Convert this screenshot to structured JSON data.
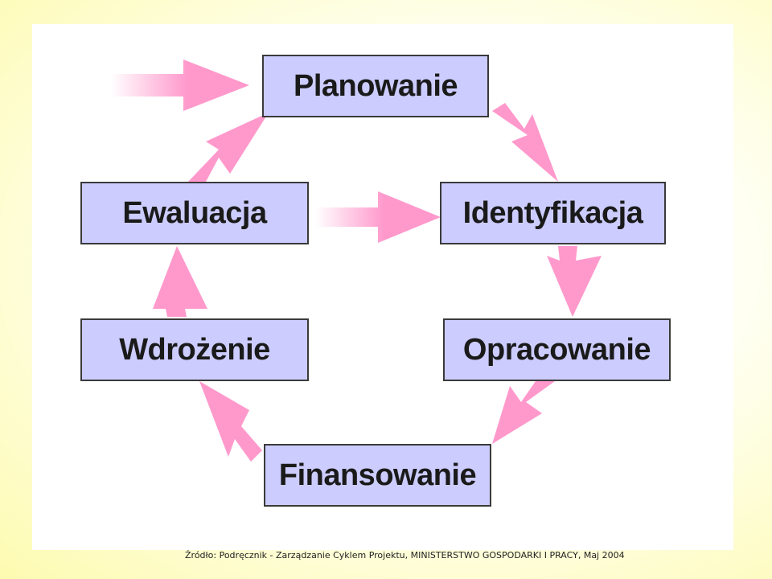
{
  "diagram": {
    "stages": {
      "planowanie": "Planowanie",
      "identyfikacja": "Identyfikacja",
      "opracowanie": "Opracowanie",
      "finansowanie": "Finansowanie",
      "wdrozenie": "Wdrożenie",
      "ewaluacja": "Ewaluacja"
    },
    "colors": {
      "box_fill": "#ccccff",
      "box_border": "#3a3a3a",
      "arrow": "#ff99cc"
    }
  },
  "source": "Źródło: Podręcznik - Zarządzanie Cyklem Projektu, MINISTERSTWO GOSPODARKI I PRACY, Maj 2004"
}
